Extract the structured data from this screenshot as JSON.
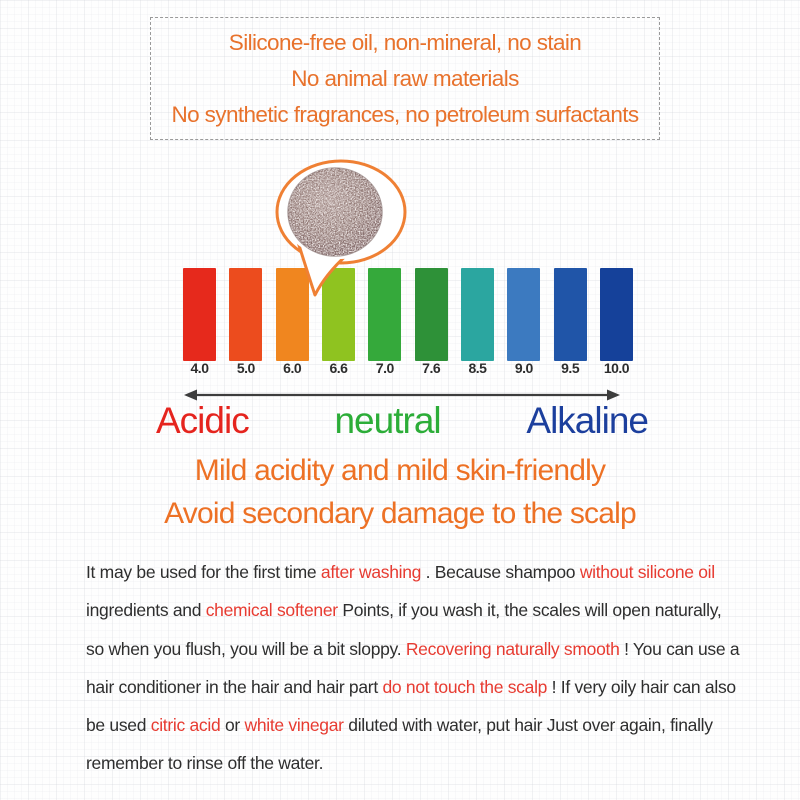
{
  "feature_box": {
    "text_color": "#e8722c",
    "lines": [
      "Silicone-free oil, non-mineral, no stain",
      "No animal raw materials",
      "No synthetic fragrances, no petroleum surfactants"
    ]
  },
  "product_bubble": {
    "description": "round speckled shampoo bar in speech bubble pointing at pH 6.6",
    "outline_color": "#ef8034",
    "bar_base_color": "#8d7470"
  },
  "chart_data": {
    "type": "bar",
    "title": "pH color scale",
    "categories": [
      "4.0",
      "5.0",
      "6.0",
      "6.6",
      "7.0",
      "7.6",
      "8.5",
      "9.0",
      "9.5",
      "10.0"
    ],
    "values": [
      1,
      1,
      1,
      1,
      1,
      1,
      1,
      1,
      1,
      1
    ],
    "equal_height_bars": true,
    "bar_colors": [
      "#e6291c",
      "#ec4c1e",
      "#f0861f",
      "#8fc320",
      "#35a93b",
      "#2e9138",
      "#2ba6a0",
      "#3c7ac0",
      "#2055a8",
      "#15419a"
    ],
    "xlabel": "",
    "ylabel": "",
    "grid": false,
    "legend": false
  },
  "ph_axis": {
    "arrow_color": "#3d3d3d",
    "labels": [
      {
        "text": "Acidic",
        "color": "#e5241e"
      },
      {
        "text": "neutral",
        "color": "#2cad38"
      },
      {
        "text": "Alkaline",
        "color": "#1c3f9d"
      }
    ]
  },
  "headline": {
    "text_color": "#ed7125",
    "lines": [
      "Mild acidity and mild skin-friendly",
      "Avoid secondary damage to the scalp"
    ]
  },
  "paragraph": {
    "text_color": "#2e2e2e",
    "highlight_color": "#e73b31",
    "lines": [
      [
        {
          "t": "It may be used for the first time ",
          "r": false
        },
        {
          "t": " after washing ",
          "r": true
        },
        {
          "t": ". Because shampoo ",
          "r": false
        },
        {
          "t": "without silicone oil",
          "r": true
        }
      ],
      [
        {
          "t": " ingredients and ",
          "r": false
        },
        {
          "t": " chemical softener ",
          "r": true
        },
        {
          "t": "Points, if you wash it, the scales will open naturally,",
          "r": false
        }
      ],
      [
        {
          "t": "so when you flush, you will be a bit sloppy. ",
          "r": false
        },
        {
          "t": "Recovering naturally smooth",
          "r": true
        },
        {
          "t": " ! You can use a",
          "r": false
        }
      ],
      [
        {
          "t": "hair conditioner in the hair and hair part ",
          "r": false
        },
        {
          "t": "do not touch the scalp",
          "r": true
        },
        {
          "t": " ! If very oily hair can also",
          "r": false
        }
      ],
      [
        {
          "t": "be used ",
          "r": false
        },
        {
          "t": " citric acid ",
          "r": true
        },
        {
          "t": " or ",
          "r": false
        },
        {
          "t": " white vinegar ",
          "r": true
        },
        {
          "t": "diluted with water, put hair Just over again, finally",
          "r": false
        }
      ],
      [
        {
          "t": "remember to rinse off the water.",
          "r": false
        }
      ]
    ]
  }
}
